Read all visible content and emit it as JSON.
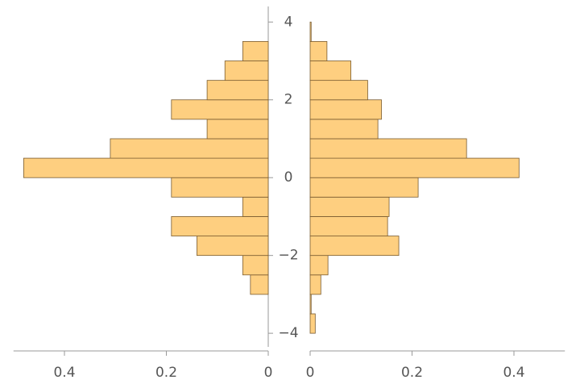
{
  "chart_data": {
    "type": "paired_histogram",
    "bins": [
      -4,
      -3.5,
      -3,
      -2.5,
      -2,
      -1.5,
      -1,
      -0.5,
      0,
      0.5,
      1,
      1.5,
      2,
      2.5,
      3,
      3.5,
      4
    ],
    "series": [
      {
        "color": "#fecf80",
        "values": [
          0,
          0,
          0.035,
          0.05,
          0.14,
          0.19,
          0.05,
          0.19,
          0.48,
          0.31,
          0.12,
          0.19,
          0.12,
          0.085,
          0.05,
          0
        ]
      },
      {
        "color": "#fecf80",
        "values": [
          0.01,
          0.002,
          0.021,
          0.035,
          0.174,
          0.152,
          0.155,
          0.212,
          0.41,
          0.307,
          0.133,
          0.14,
          0.113,
          0.08,
          0.033,
          0.002
        ]
      }
    ],
    "xlim": [
      0,
      0.5
    ],
    "xticks": [
      0,
      0.2,
      0.4
    ],
    "ylim": [
      -4.35,
      4.4
    ],
    "yticks": [
      {
        "value": -4,
        "label": "−4"
      },
      {
        "value": -2,
        "label": "−2"
      },
      0,
      2,
      4
    ]
  }
}
